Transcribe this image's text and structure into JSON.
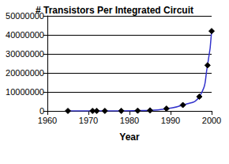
{
  "chart_data": {
    "type": "line",
    "title": "# Transistors Per Integrated Circuit",
    "x_label": "Year",
    "x": [
      1965,
      1971,
      1972,
      1974,
      1978,
      1982,
      1985,
      1989,
      1993,
      1997,
      1999,
      2000
    ],
    "values": [
      100,
      2300,
      3500,
      6000,
      29000,
      134000,
      275000,
      1200000,
      3100000,
      7500000,
      24000000,
      42000000
    ],
    "color": "#3333cc",
    "marker": "diamond",
    "line_style": "smooth",
    "xlim": [
      1960,
      2000
    ],
    "xticks": [
      1960,
      1970,
      1980,
      1990,
      2000
    ],
    "ylim": [
      0,
      50000000
    ],
    "yticks": [
      0,
      10000000,
      20000000,
      30000000,
      40000000,
      50000000
    ],
    "grid": true
  }
}
